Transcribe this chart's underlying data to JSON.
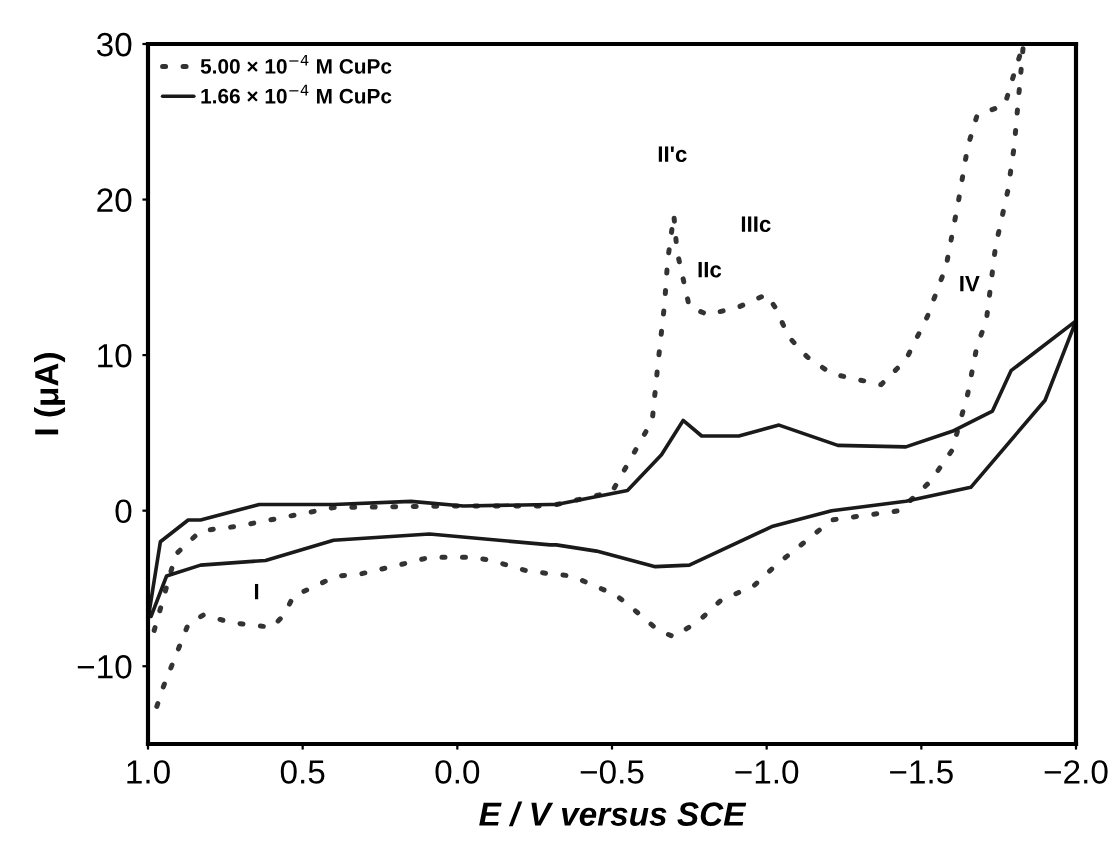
{
  "chart_data": {
    "type": "line",
    "xlabel": "E / V versus SCE",
    "ylabel": "I (μA)",
    "xlim": [
      1.0,
      -2.0
    ],
    "ylim": [
      -15,
      30
    ],
    "xticks": [
      {
        "value": 1.0,
        "label": "1.0"
      },
      {
        "value": 0.5,
        "label": "0.5"
      },
      {
        "value": 0.0,
        "label": "0.0"
      },
      {
        "value": -0.5,
        "label": "−0.5"
      },
      {
        "value": -1.0,
        "label": "−1.0"
      },
      {
        "value": -1.5,
        "label": "−1.5"
      },
      {
        "value": -2.0,
        "label": "−2.0"
      }
    ],
    "yticks": [
      {
        "value": -10,
        "label": "−10"
      },
      0,
      10,
      20,
      30
    ],
    "grid": false,
    "legend": "top left",
    "series": [
      {
        "name": "5.00 × 10$^{−4}$ M CuPc",
        "color": "#333333",
        "line_style": "dotted",
        "x": [
          0.98,
          0.91,
          0.83,
          0.71,
          0.4,
          0.0,
          -0.3,
          -0.5,
          -0.63,
          -0.65,
          -0.67,
          -0.68,
          -0.7,
          -0.71,
          -0.75,
          -0.81,
          -0.91,
          -1.0,
          -1.03,
          -1.07,
          -1.13,
          -1.21,
          -1.37,
          -1.45,
          -1.52,
          -1.58,
          -1.62,
          -1.65,
          -1.68,
          -1.77,
          -1.8,
          -1.83,
          -1.8,
          -1.78,
          -1.74,
          -1.71,
          -1.68,
          -1.65,
          -1.6,
          -1.53,
          -1.43,
          -1.21,
          -1.13,
          -1.03,
          -0.96,
          -0.85,
          -0.78,
          -0.7,
          -0.65,
          -0.55,
          -0.51,
          -0.37,
          -0.23,
          -0.11,
          -0.05,
          0.09,
          0.19,
          0.32,
          0.39,
          0.53,
          0.56,
          0.6,
          0.73,
          0.82,
          0.87,
          0.91,
          0.93,
          0.95,
          0.98
        ],
        "values": [
          -7.7,
          -2.8,
          -1.3,
          -1.0,
          0.2,
          0.3,
          0.3,
          1.2,
          5.8,
          9.7,
          13.3,
          16.1,
          19.0,
          16.7,
          13.1,
          12.6,
          13.1,
          13.9,
          13.0,
          11.2,
          9.9,
          8.8,
          8.1,
          9.7,
          12.5,
          15.7,
          19.9,
          23.4,
          25.4,
          26.1,
          28.1,
          30,
          23.4,
          20.6,
          17.0,
          12.2,
          10.6,
          7.5,
          3.9,
          1.9,
          0,
          -0.6,
          -1.9,
          -3.5,
          -4.8,
          -5.8,
          -7.1,
          -8.1,
          -7.7,
          -6.0,
          -5.4,
          -4.2,
          -3.9,
          -3.2,
          -3.0,
          -3.0,
          -3.5,
          -4.1,
          -4.2,
          -5.5,
          -6.7,
          -7.5,
          -7.2,
          -6.7,
          -7.3,
          -9.3,
          -10.3,
          -11.3,
          -13.1
        ]
      },
      {
        "name": "1.66 × 10$^{−4}$ M CuPc",
        "color": "#1a1a1a",
        "line_style": "solid",
        "x": [
          1.0,
          0.96,
          0.87,
          0.83,
          0.64,
          0.4,
          0.15,
          -0.02,
          -0.3,
          -0.32,
          -0.55,
          -0.66,
          -0.73,
          -0.79,
          -0.91,
          -1.04,
          -1.23,
          -1.45,
          -1.6,
          -1.73,
          -1.79,
          -2.0,
          -1.9,
          -1.66,
          -1.45,
          -1.21,
          -1.02,
          -0.75,
          -0.64,
          -0.45,
          -0.32,
          -0.3,
          0.09,
          0.4,
          0.62,
          0.83,
          0.94,
          0.99
        ],
        "values": [
          -7.0,
          -2.0,
          -0.6,
          -0.6,
          0.4,
          0.4,
          0.6,
          0.3,
          0.4,
          0.4,
          1.3,
          3.6,
          5.8,
          4.8,
          4.8,
          5.5,
          4.2,
          4.1,
          5.1,
          6.4,
          9.0,
          12.2,
          7.1,
          1.5,
          0.6,
          0,
          -1.0,
          -3.5,
          -3.6,
          -2.6,
          -2.2,
          -2.2,
          -1.5,
          -1.9,
          -3.2,
          -3.5,
          -4.2,
          -6.8
        ]
      }
    ],
    "annotations": [
      "II'c",
      "IIc",
      "IIIc",
      "IV",
      "I"
    ]
  }
}
